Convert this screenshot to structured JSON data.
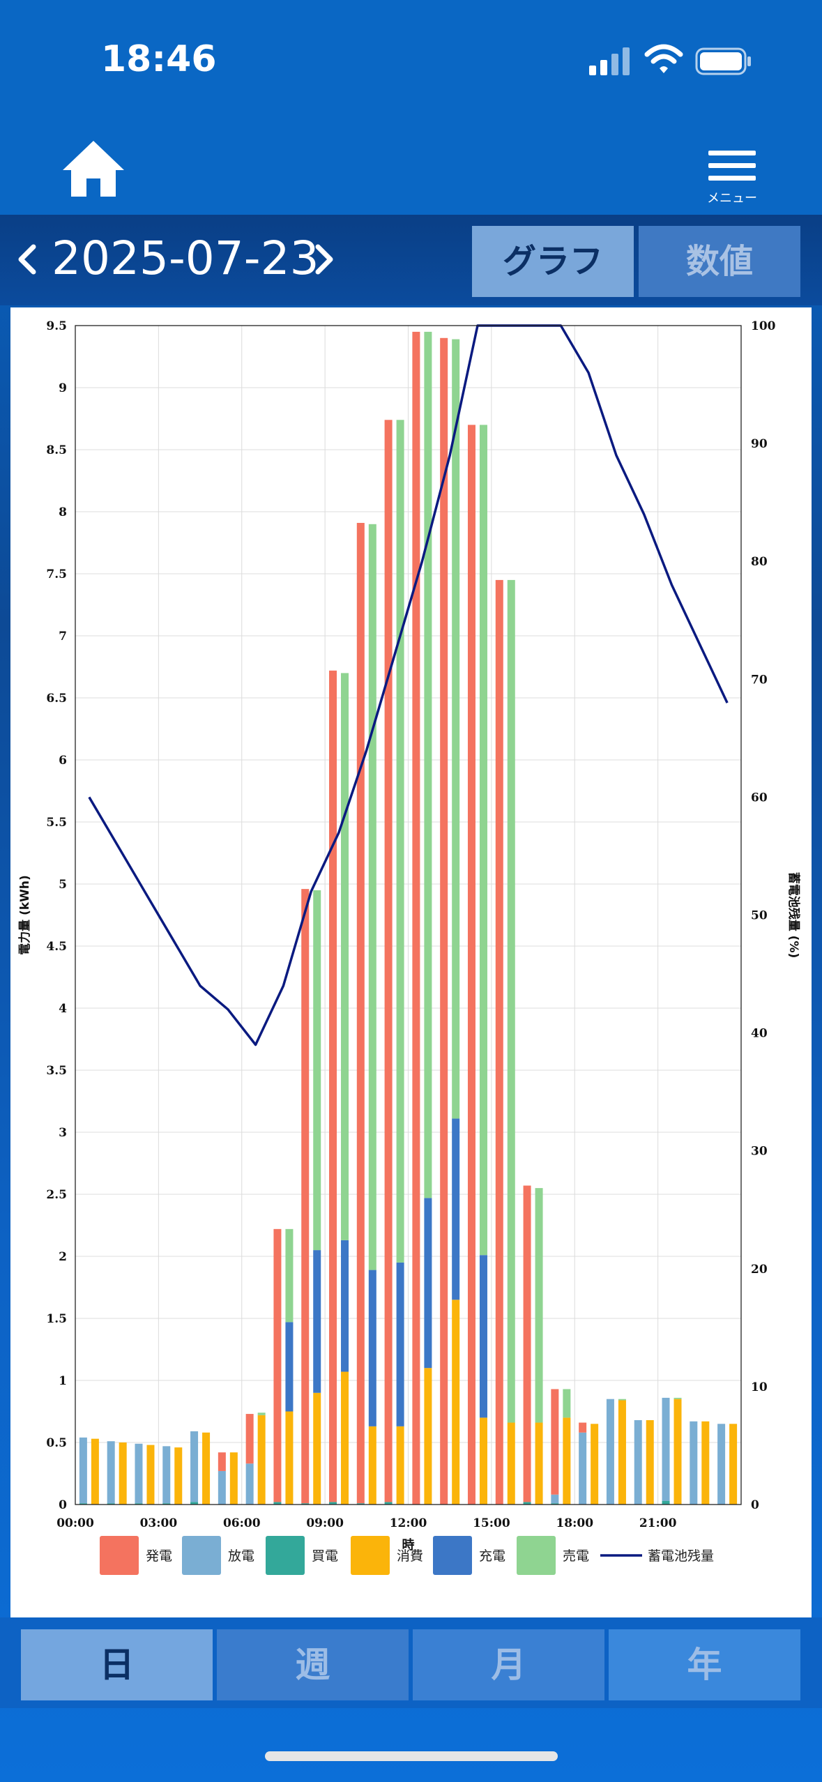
{
  "status_bar": {
    "time": "18:46",
    "icons": [
      "cellular-signal-icon",
      "wifi-icon",
      "battery-icon"
    ]
  },
  "nav": {
    "home_icon": "home-icon",
    "menu_label": "メニュー"
  },
  "date_bar": {
    "date": "2025-07-23",
    "prev_icon": "chevron-left-icon",
    "next_icon": "chevron-right-icon"
  },
  "view_toggle": {
    "graph": "グラフ",
    "numeric": "数値",
    "selected": "graph"
  },
  "period_tabs": {
    "day": "日",
    "week": "週",
    "month": "月",
    "year": "年",
    "selected": "day"
  },
  "chart_data": {
    "type": "bar",
    "xlabel": "時",
    "ylabel": "電力量 (kWh)",
    "y2label": "蓄電池残量 (%)",
    "ylim": [
      0,
      9.5
    ],
    "y2lim": [
      0,
      100
    ],
    "y_ticks": [
      "0",
      "0.5",
      "1",
      "1.5",
      "2",
      "2.5",
      "3",
      "3.5",
      "4",
      "4.5",
      "5",
      "5.5",
      "6",
      "6.5",
      "7",
      "7.5",
      "8",
      "8.5",
      "9",
      "9.5"
    ],
    "y2_ticks": [
      "0",
      "10",
      "20",
      "30",
      "40",
      "50",
      "60",
      "70",
      "80",
      "90",
      "100"
    ],
    "x_tick_labels": [
      "00:00",
      "03:00",
      "06:00",
      "09:00",
      "12:00",
      "15:00",
      "18:00",
      "21:00"
    ],
    "grid": true,
    "legend_position": "bottom",
    "colors": {
      "generation": "#f4735f",
      "discharge": "#7aaed3",
      "purchase": "#33a89a",
      "consumption": "#fbb40a",
      "charge": "#3c77c6",
      "sale": "#8fd491",
      "battery_level": "#0a1a80"
    },
    "legend": [
      {
        "key": "generation",
        "label": "発電"
      },
      {
        "key": "discharge",
        "label": "放電"
      },
      {
        "key": "purchase",
        "label": "買電"
      },
      {
        "key": "consumption",
        "label": "消費"
      },
      {
        "key": "charge",
        "label": "充電"
      },
      {
        "key": "sale",
        "label": "売電"
      },
      {
        "key": "battery_level",
        "label": "蓄電池残量"
      }
    ],
    "hours": [
      0,
      1,
      2,
      3,
      4,
      5,
      6,
      7,
      8,
      9,
      10,
      11,
      12,
      13,
      14,
      15,
      16,
      17,
      18,
      19,
      20,
      21,
      22,
      23
    ],
    "supply_series": {
      "generation": [
        0,
        0,
        0,
        0,
        0,
        0.15,
        0.4,
        2.2,
        4.95,
        6.7,
        7.9,
        8.72,
        9.45,
        9.4,
        8.7,
        7.45,
        2.55,
        0.85,
        0.08,
        0,
        0,
        0,
        0,
        0
      ],
      "discharge": [
        0.53,
        0.5,
        0.48,
        0.46,
        0.57,
        0.27,
        0.33,
        0,
        0,
        0,
        0,
        0,
        0,
        0,
        0,
        0,
        0,
        0.07,
        0.58,
        0.85,
        0.68,
        0.83,
        0.67,
        0.65
      ],
      "purchase": [
        0.01,
        0.01,
        0.01,
        0.01,
        0.02,
        0,
        0,
        0.02,
        0.01,
        0.02,
        0.01,
        0.02,
        0,
        0,
        0,
        0,
        0.02,
        0.01,
        0,
        0,
        0,
        0.03,
        0,
        0
      ]
    },
    "usage_series": {
      "consumption": [
        0.53,
        0.5,
        0.48,
        0.46,
        0.58,
        0.42,
        0.72,
        0.75,
        0.9,
        1.07,
        0.63,
        0.63,
        1.1,
        1.65,
        0.7,
        0.66,
        0.66,
        0.7,
        0.65,
        0.84,
        0.68,
        0.85,
        0.67,
        0.65
      ],
      "charge": [
        0,
        0,
        0,
        0,
        0,
        0,
        0,
        0.72,
        1.15,
        1.06,
        1.26,
        1.32,
        1.37,
        1.46,
        1.31,
        0,
        0,
        0,
        0,
        0,
        0,
        0,
        0,
        0
      ],
      "sale": [
        0,
        0,
        0,
        0,
        0,
        0,
        0.02,
        0.75,
        2.9,
        4.57,
        6.01,
        6.79,
        6.98,
        6.28,
        6.69,
        6.79,
        1.89,
        0.23,
        0,
        0.01,
        0,
        0.01,
        0,
        0
      ]
    },
    "battery_level": [
      60,
      56,
      52,
      48,
      44,
      42,
      39,
      44,
      52,
      57,
      64,
      72,
      80,
      89,
      100,
      100,
      100,
      100,
      96,
      89,
      84,
      78,
      73,
      68
    ]
  }
}
